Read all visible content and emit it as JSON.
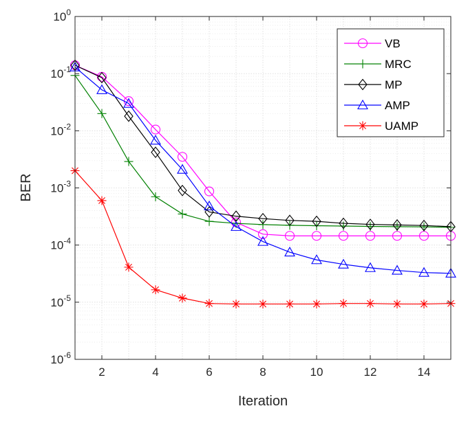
{
  "chart_data": {
    "type": "line",
    "xlabel": "Iteration",
    "ylabel": "BER",
    "y_scale": "log",
    "xlim": [
      1,
      15
    ],
    "ylim_exponents": [
      -6,
      0
    ],
    "grid": true,
    "legend_position": "top-right",
    "x_ticks": [
      2,
      4,
      6,
      8,
      10,
      12,
      14
    ],
    "y_ticks": [
      {
        "base": "10",
        "exp": "0",
        "value_exp": 0
      },
      {
        "base": "10",
        "exp": "-1",
        "value_exp": -1
      },
      {
        "base": "10",
        "exp": "-2",
        "value_exp": -2
      },
      {
        "base": "10",
        "exp": "-3",
        "value_exp": -3
      },
      {
        "base": "10",
        "exp": "-4",
        "value_exp": -4
      },
      {
        "base": "10",
        "exp": "-5",
        "value_exp": -5
      },
      {
        "base": "10",
        "exp": "-6",
        "value_exp": -6
      }
    ],
    "x": [
      1,
      2,
      3,
      4,
      5,
      6,
      7,
      8,
      9,
      10,
      11,
      12,
      13,
      14,
      15
    ],
    "series": [
      {
        "name": "VB",
        "color": "#ff00ff",
        "marker": "circle",
        "values": [
          0.14,
          0.088,
          0.033,
          0.0105,
          0.0035,
          0.00087,
          0.00025,
          0.000155,
          0.000145,
          0.000145,
          0.000145,
          0.000145,
          0.000145,
          0.000145,
          0.000145
        ]
      },
      {
        "name": "MRC",
        "color": "#008000",
        "marker": "plus",
        "values": [
          0.093,
          0.02,
          0.0029,
          0.0007,
          0.00035,
          0.00026,
          0.00024,
          0.000228,
          0.000222,
          0.000218,
          0.000215,
          0.000212,
          0.00021,
          0.000208,
          0.000205
        ]
      },
      {
        "name": "MP",
        "color": "#000000",
        "marker": "diamond",
        "values": [
          0.14,
          0.085,
          0.018,
          0.0042,
          0.0009,
          0.00038,
          0.00032,
          0.00029,
          0.00027,
          0.00026,
          0.00024,
          0.00023,
          0.000225,
          0.00022,
          0.00021
        ]
      },
      {
        "name": "AMP",
        "color": "#0000ff",
        "marker": "triangle",
        "values": [
          0.13,
          0.052,
          0.03,
          0.0068,
          0.0021,
          0.00048,
          0.00021,
          0.000115,
          7.5e-05,
          5.5e-05,
          4.6e-05,
          4e-05,
          3.6e-05,
          3.3e-05,
          3.2e-05
        ]
      },
      {
        "name": "UAMP",
        "color": "#ff0000",
        "marker": "asterisk",
        "values": [
          0.002,
          0.0006,
          4.1e-05,
          1.65e-05,
          1.18e-05,
          9.5e-06,
          9.3e-06,
          9.3e-06,
          9.3e-06,
          9.3e-06,
          9.5e-06,
          9.5e-06,
          9.3e-06,
          9.3e-06,
          9.5e-06
        ]
      }
    ]
  }
}
